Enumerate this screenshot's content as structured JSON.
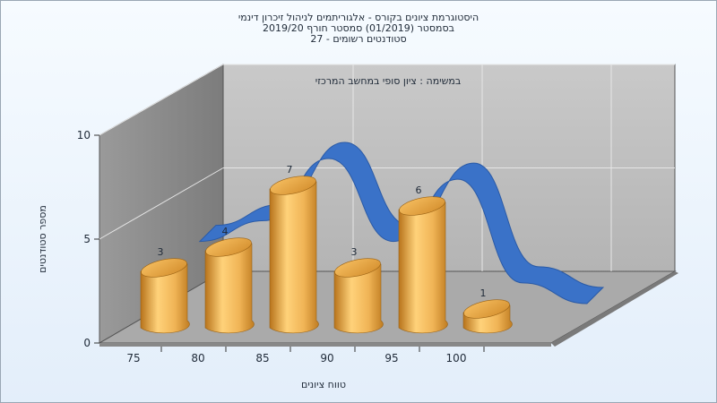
{
  "chart_data": {
    "type": "bar",
    "title_lines": [
      "היסטוגרמת ציונים בקורס - אלגוריתמים לניהול זיכרון דינמי",
      "בסמסטר  (01/2019)  סמסטר חורף  2019/20",
      "סטודנטים רשומים - 27"
    ],
    "annotation": "במשימה : ציון סופי במחשב המרכזי",
    "xlabel": "טווח ציונים",
    "ylabel": "מספר סטודנטים",
    "categories": [
      "75",
      "80",
      "85",
      "90",
      "95",
      "100"
    ],
    "values": [
      3,
      4,
      7,
      3,
      6,
      1
    ],
    "ylim": [
      0,
      10
    ],
    "yticks": [
      "0",
      "5",
      "10"
    ],
    "grid": true,
    "colors": {
      "bar_light": "#ffd27a",
      "bar_mid": "#e9a33e",
      "bar_dark": "#b8741c",
      "ribbon": "#3a72c8",
      "ribbon_dark": "#2a5aa6",
      "back_wall": "#c2c2c2",
      "left_wall": "#8e8e8e",
      "floor": "#aaaaaa"
    }
  }
}
